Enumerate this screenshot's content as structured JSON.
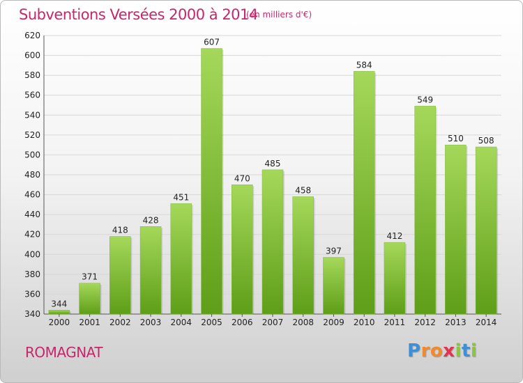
{
  "header": {
    "title": "Subventions Versées 2000 à 2014",
    "unit_note": "(en milliers d'€)"
  },
  "footer": {
    "city": "ROMAGNAT",
    "logo_letters": [
      "P",
      "r",
      "o",
      "x",
      "i",
      "t",
      "i"
    ],
    "logo_colors": [
      "#3f8fd6",
      "#f08a2c",
      "#f08a2c",
      "#e2334f",
      "#8cc63f",
      "#3f8fd6",
      "#8cc63f"
    ]
  },
  "colors": {
    "title": "#c8266b",
    "bar_light": "#a5d85a",
    "bar_dark": "#5e9e18",
    "grid": "#d8d8d8"
  },
  "chart_data": {
    "type": "bar",
    "title": "Subventions Versées 2000 à 2014",
    "subtitle": "(en milliers d'€)",
    "xlabel": "",
    "ylabel": "",
    "categories": [
      "2000",
      "2001",
      "2002",
      "2003",
      "2004",
      "2005",
      "2006",
      "2007",
      "2008",
      "2009",
      "2010",
      "2011",
      "2012",
      "2013",
      "2014"
    ],
    "values": [
      344,
      371,
      418,
      428,
      451,
      607,
      470,
      485,
      458,
      397,
      584,
      412,
      549,
      510,
      508
    ],
    "data_labels": [
      "344",
      "371",
      "418",
      "428",
      "451",
      "607",
      "470",
      "485",
      "458",
      "397",
      "584",
      "412",
      "549",
      "510",
      "508"
    ],
    "ylim": [
      340,
      620
    ],
    "yticks": [
      "340",
      "360",
      "380",
      "400",
      "420",
      "440",
      "460",
      "480",
      "500",
      "520",
      "540",
      "560",
      "580",
      "600",
      "620"
    ],
    "grid": true,
    "legend": "none"
  }
}
